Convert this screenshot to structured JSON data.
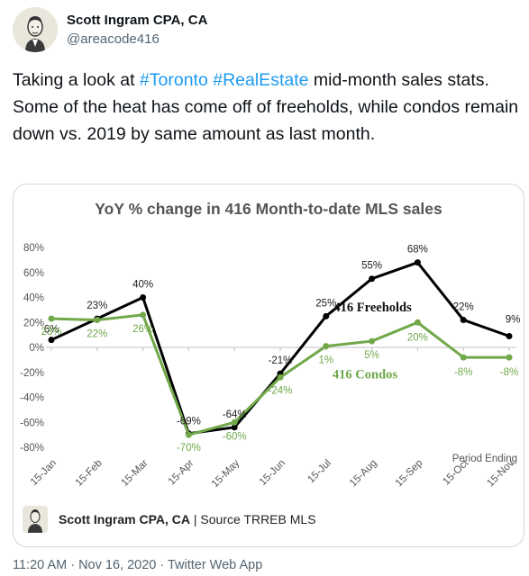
{
  "author": {
    "name": "Scott Ingram CPA, CA",
    "handle": "@areacode416"
  },
  "tweet": {
    "text_before": "Taking a look at ",
    "hashtag1": "#Toronto",
    "space": " ",
    "hashtag2": "#RealEstate",
    "text_after": " mid-month sales stats. Some of the heat has come off of freeholds, while condos remain down vs. 2019 by same amount as last month."
  },
  "chart_data": {
    "type": "line",
    "title": "YoY % change in 416 Month-to-date MLS sales",
    "x_axis_caption": "Period Ending",
    "categories": [
      "15-Jan",
      "15-Feb",
      "15-Mar",
      "15-Apr",
      "15-May",
      "15-Jun",
      "15-Jul",
      "15-Aug",
      "15-Sep",
      "15-Oct",
      "15-Nov"
    ],
    "ylim": [
      -80,
      80
    ],
    "yticks": [
      "80%",
      "60%",
      "40%",
      "20%",
      "0%",
      "-20%",
      "-40%",
      "-60%",
      "-80%"
    ],
    "ytick_values": [
      80,
      60,
      40,
      20,
      0,
      -20,
      -40,
      -60,
      -80
    ],
    "series": [
      {
        "name": "416 Freeholds",
        "color": "#000000",
        "values": [
          6,
          23,
          40,
          -69,
          -64,
          -21,
          25,
          55,
          68,
          22,
          9
        ],
        "labels": [
          "6%",
          "23%",
          "40%",
          "-69%",
          "-64%",
          "-21%",
          "25%",
          "55%",
          "68%",
          "22%",
          "9%"
        ]
      },
      {
        "name": "416 Condos",
        "color": "#70a84a",
        "values": [
          23,
          22,
          26,
          -70,
          -60,
          -24,
          1,
          5,
          20,
          -8,
          -8
        ],
        "labels": [
          "23%",
          "22%",
          "26%",
          "-70%",
          "-60%",
          "-24%",
          "1%",
          "5%",
          "20%",
          "-8%",
          "-8%"
        ]
      }
    ],
    "grid": false
  },
  "chart_footer": {
    "author": "Scott Ingram CPA, CA",
    "separator": " | ",
    "source": "Source TRREB MLS"
  },
  "timestamp": "11:20 AM · Nov 16, 2020 · Twitter Web App"
}
